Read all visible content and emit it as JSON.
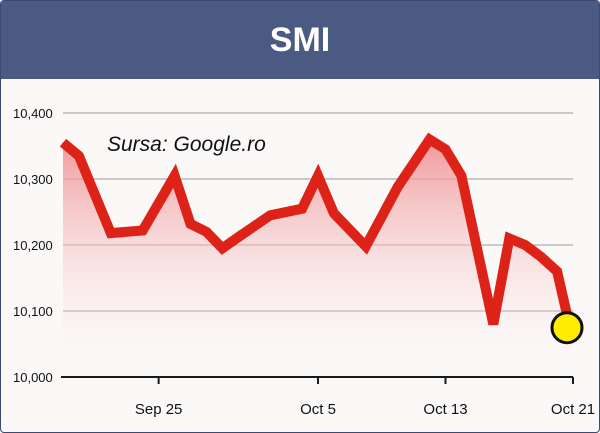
{
  "chart_data": {
    "type": "line",
    "title": "SMI",
    "annotation": "Sursa: Google.ro",
    "xlabel": "",
    "ylabel": "",
    "ylim": [
      10000,
      10400
    ],
    "yticks": [
      10000,
      10100,
      10200,
      10300,
      10400
    ],
    "ytick_labels": [
      "10,000",
      "10,100",
      "10,200",
      "10,300",
      "10,400"
    ],
    "xlim": [
      "2008-09-19",
      "2008-10-21"
    ],
    "xticks": [
      "2008-09-25",
      "2008-10-05",
      "2008-10-13",
      "2008-10-21"
    ],
    "xtick_labels": [
      "Sep 25",
      "Oct 5",
      "Oct 13",
      "Oct 21"
    ],
    "grid": "horizontal",
    "series": [
      {
        "x": [
          "2008-09-19",
          "2008-09-20",
          "2008-09-22",
          "2008-09-24",
          "2008-09-26",
          "2008-09-27",
          "2008-09-28",
          "2008-09-29",
          "2008-09-30",
          "2008-10-02",
          "2008-10-04",
          "2008-10-05",
          "2008-10-06",
          "2008-10-08",
          "2008-10-10",
          "2008-10-12",
          "2008-10-13",
          "2008-10-14",
          "2008-10-16",
          "2008-10-17",
          "2008-10-18",
          "2008-10-19",
          "2008-10-20",
          "2008-10-21"
        ],
        "values": [
          10355,
          10335,
          10218,
          10222,
          10305,
          10232,
          10220,
          10195,
          10212,
          10245,
          10255,
          10305,
          10248,
          10198,
          10288,
          10360,
          10345,
          10305,
          10080,
          10210,
          10200,
          10182,
          10160,
          10055
        ]
      }
    ],
    "colors": {
      "line": "#dd2218",
      "fill_top": "#ef8e90",
      "marker": "#ffec00",
      "marker_stroke": "#111111",
      "header": "#4a5a82"
    }
  }
}
